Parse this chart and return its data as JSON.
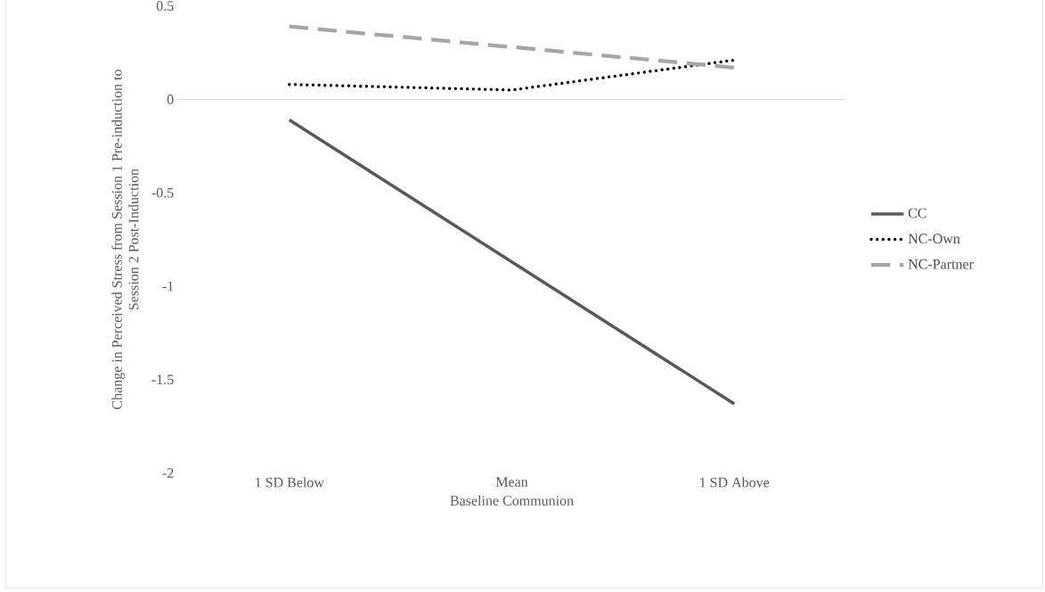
{
  "chart_data": {
    "type": "line",
    "xlabel": "Baseline Communion",
    "ylabel": "Change in Perceived Stress from Session 1 Pre-induction to Session 2 Post-Induction",
    "categories": [
      "1 SD Below",
      "Mean",
      "1 SD Above"
    ],
    "series": [
      {
        "name": "CC",
        "color": "#595959",
        "values": [
          -0.11,
          -0.87,
          -1.63
        ],
        "line_style": "solid"
      },
      {
        "name": "NC-Own",
        "color": "#000000",
        "values": [
          0.08,
          0.05,
          0.21
        ],
        "line_style": "dotted"
      },
      {
        "name": "NC-Partner",
        "color": "#a6a6a6",
        "values": [
          0.39,
          0.28,
          0.17
        ],
        "line_style": "dashed"
      }
    ],
    "ref_lines": [
      {
        "axis": "y",
        "value": 0,
        "color": "#d9d9d9"
      }
    ],
    "ylim": [
      -2,
      0.5
    ],
    "yticks": [
      -2,
      -1.5,
      -1,
      -0.5,
      0,
      0.5
    ],
    "grid": false,
    "legend": "right",
    "marker": "none"
  }
}
